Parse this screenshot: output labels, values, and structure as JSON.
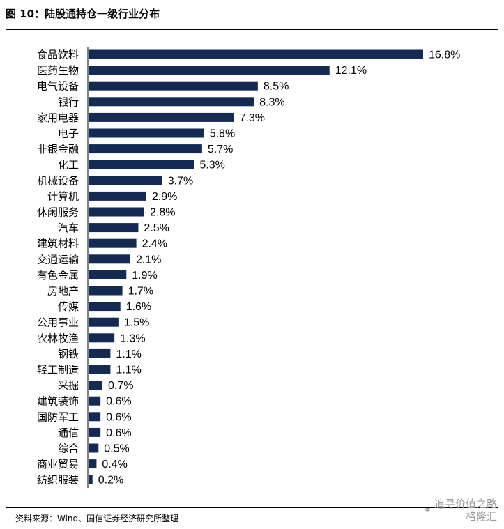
{
  "figure": {
    "title": "图 10：陆股通持仓一级行业分布",
    "source": "资料来源：Wind、国信证券经济研究所整理"
  },
  "watermark": {
    "icon": "wechat-icon",
    "line1": "追寻价值之路",
    "line2": "格隆汇"
  },
  "colors": {
    "bar": "#142a52"
  },
  "chart_data": {
    "type": "bar",
    "orientation": "horizontal",
    "title": "图 10：陆股通持仓一级行业分布",
    "xlabel": "",
    "ylabel": "",
    "value_suffix": "%",
    "xlim": [
      0,
      16.8
    ],
    "grid": false,
    "legend": "none",
    "categories": [
      "食品饮料",
      "医药生物",
      "电气设备",
      "银行",
      "家用电器",
      "电子",
      "非银金融",
      "化工",
      "机械设备",
      "计算机",
      "休闲服务",
      "汽车",
      "建筑材料",
      "交通运输",
      "有色金属",
      "房地产",
      "传媒",
      "公用事业",
      "农林牧渔",
      "钢铁",
      "轻工制造",
      "采掘",
      "建筑装饰",
      "国防军工",
      "通信",
      "综合",
      "商业贸易",
      "纺织服装"
    ],
    "values": [
      16.8,
      12.1,
      8.5,
      8.3,
      7.3,
      5.8,
      5.7,
      5.3,
      3.7,
      2.9,
      2.8,
      2.5,
      2.4,
      2.1,
      1.9,
      1.7,
      1.6,
      1.5,
      1.3,
      1.1,
      1.1,
      0.7,
      0.6,
      0.6,
      0.6,
      0.5,
      0.4,
      0.2
    ],
    "data_labels": [
      "16.8%",
      "12.1%",
      "8.5%",
      "8.3%",
      "7.3%",
      "5.8%",
      "5.7%",
      "5.3%",
      "3.7%",
      "2.9%",
      "2.8%",
      "2.5%",
      "2.4%",
      "2.1%",
      "1.9%",
      "1.7%",
      "1.6%",
      "1.5%",
      "1.3%",
      "1.1%",
      "1.1%",
      "0.7%",
      "0.6%",
      "0.6%",
      "0.6%",
      "0.5%",
      "0.4%",
      "0.2%"
    ]
  }
}
